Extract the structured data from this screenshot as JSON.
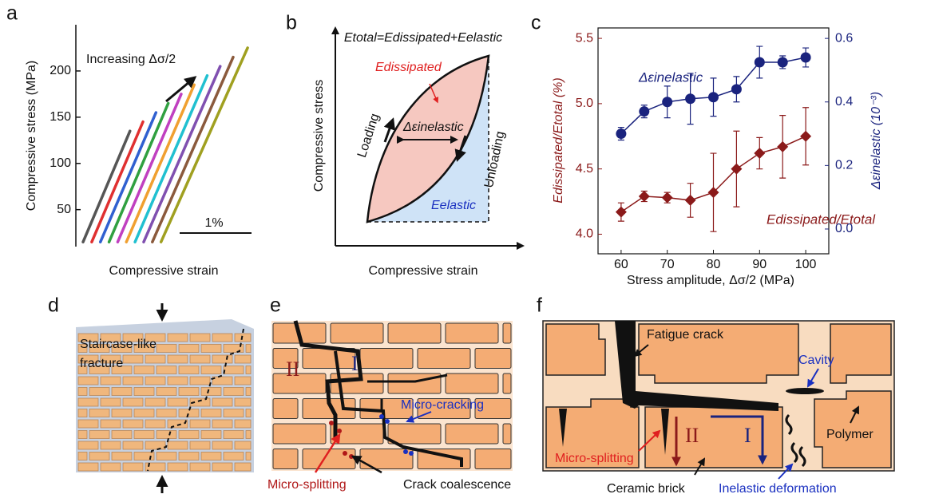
{
  "panel_labels": [
    "a",
    "b",
    "c",
    "d",
    "e",
    "f"
  ],
  "chart_data": [
    {
      "type": "line",
      "annotation": "Increasing Δσ/2",
      "y_label": "Compressive stress (MPa)",
      "x_label": "Compressive strain",
      "scale_bar": "1%",
      "xlim": [
        0,
        2.6
      ],
      "ylim": [
        10,
        250
      ],
      "yticks": [
        50,
        100,
        150,
        200
      ],
      "series": [
        {
          "color": "#555555",
          "x": [
            0.1,
            0.75
          ],
          "values": [
            15,
            135
          ]
        },
        {
          "color": "#e03030",
          "x": [
            0.22,
            0.93
          ],
          "values": [
            15,
            145
          ]
        },
        {
          "color": "#3060d0",
          "x": [
            0.34,
            1.11
          ],
          "values": [
            15,
            155
          ]
        },
        {
          "color": "#30a040",
          "x": [
            0.46,
            1.28
          ],
          "values": [
            15,
            165
          ]
        },
        {
          "color": "#c040c0",
          "x": [
            0.58,
            1.46
          ],
          "values": [
            15,
            175
          ]
        },
        {
          "color": "#f0a030",
          "x": [
            0.7,
            1.64
          ],
          "values": [
            15,
            185
          ]
        },
        {
          "color": "#20c0d0",
          "x": [
            0.82,
            1.82
          ],
          "values": [
            15,
            195
          ]
        },
        {
          "color": "#8050b0",
          "x": [
            0.94,
            2.0
          ],
          "values": [
            15,
            205
          ]
        },
        {
          "color": "#8b5a3c",
          "x": [
            1.06,
            2.18
          ],
          "values": [
            15,
            215
          ]
        },
        {
          "color": "#a0a020",
          "x": [
            1.18,
            2.38
          ],
          "values": [
            15,
            225
          ]
        }
      ]
    },
    {
      "type": "scatter",
      "x_label": "Stress amplitude, Δσ/2 (MPa)",
      "y_label": "Edissipated/Etotal (%)",
      "y2_label": "Δεinelastic (10⁻³)",
      "x": [
        60,
        65,
        70,
        75,
        80,
        85,
        90,
        95,
        100
      ],
      "xlim": [
        55,
        105
      ],
      "xticks": [
        60,
        70,
        80,
        90,
        100
      ],
      "ylim": [
        3.85,
        5.58
      ],
      "yticks": [
        {
          "value": 4,
          "label": "4.0"
        },
        4.5,
        {
          "value": 5,
          "label": "5.0"
        },
        5.5
      ],
      "y2lim": [
        -0.078,
        0.633
      ],
      "y2ticks": [
        {
          "value": 0,
          "label": "0.0"
        },
        0.2,
        0.4,
        0.6
      ],
      "series": [
        {
          "name": "Edissipated/Etotal",
          "color": "#8b1a1a",
          "marker": "diamond",
          "values": [
            4.17,
            4.29,
            4.28,
            4.26,
            4.32,
            4.5,
            4.62,
            4.67,
            4.75
          ],
          "errors": [
            0.07,
            0.04,
            0.04,
            0.13,
            0.3,
            0.29,
            0.12,
            0.24,
            0.22
          ]
        },
        {
          "name": "Δεinelastic",
          "color": "#1a237e",
          "marker": "circle",
          "axis": "y2",
          "values": [
            0.3,
            0.37,
            0.4,
            0.41,
            0.415,
            0.44,
            0.525,
            0.525,
            0.54
          ],
          "errors": [
            0.02,
            0.02,
            0.05,
            0.08,
            0.06,
            0.04,
            0.05,
            0.02,
            0.03
          ]
        }
      ]
    }
  ],
  "panel_b": {
    "equation": "Etotal=Edissipated+Eelastic",
    "dissipated": "Edissipated",
    "elastic": "Eelastic",
    "inelastic": "Δεinelastic",
    "loading": "Loading",
    "unloading": "Unloading",
    "y_label": "Compressive stress",
    "x_label": "Compressive strain"
  },
  "panel_d": {
    "label": [
      "Staircase-like",
      "fracture"
    ]
  },
  "panel_e": {
    "mode_2": "II",
    "mode_1": "I",
    "micro_cracking": "Micro-cracking",
    "micro_splitting": "Micro-splitting",
    "coalescence": "Crack coalescence"
  },
  "panel_f": {
    "fatigue_crack": "Fatigue crack",
    "cavity": "Cavity",
    "polymer": "Polymer",
    "micro_splitting": "Micro-splitting",
    "mode_2": "II",
    "mode_1": "I",
    "brick": "Ceramic brick",
    "inelastic": "Inelastic deformation"
  }
}
